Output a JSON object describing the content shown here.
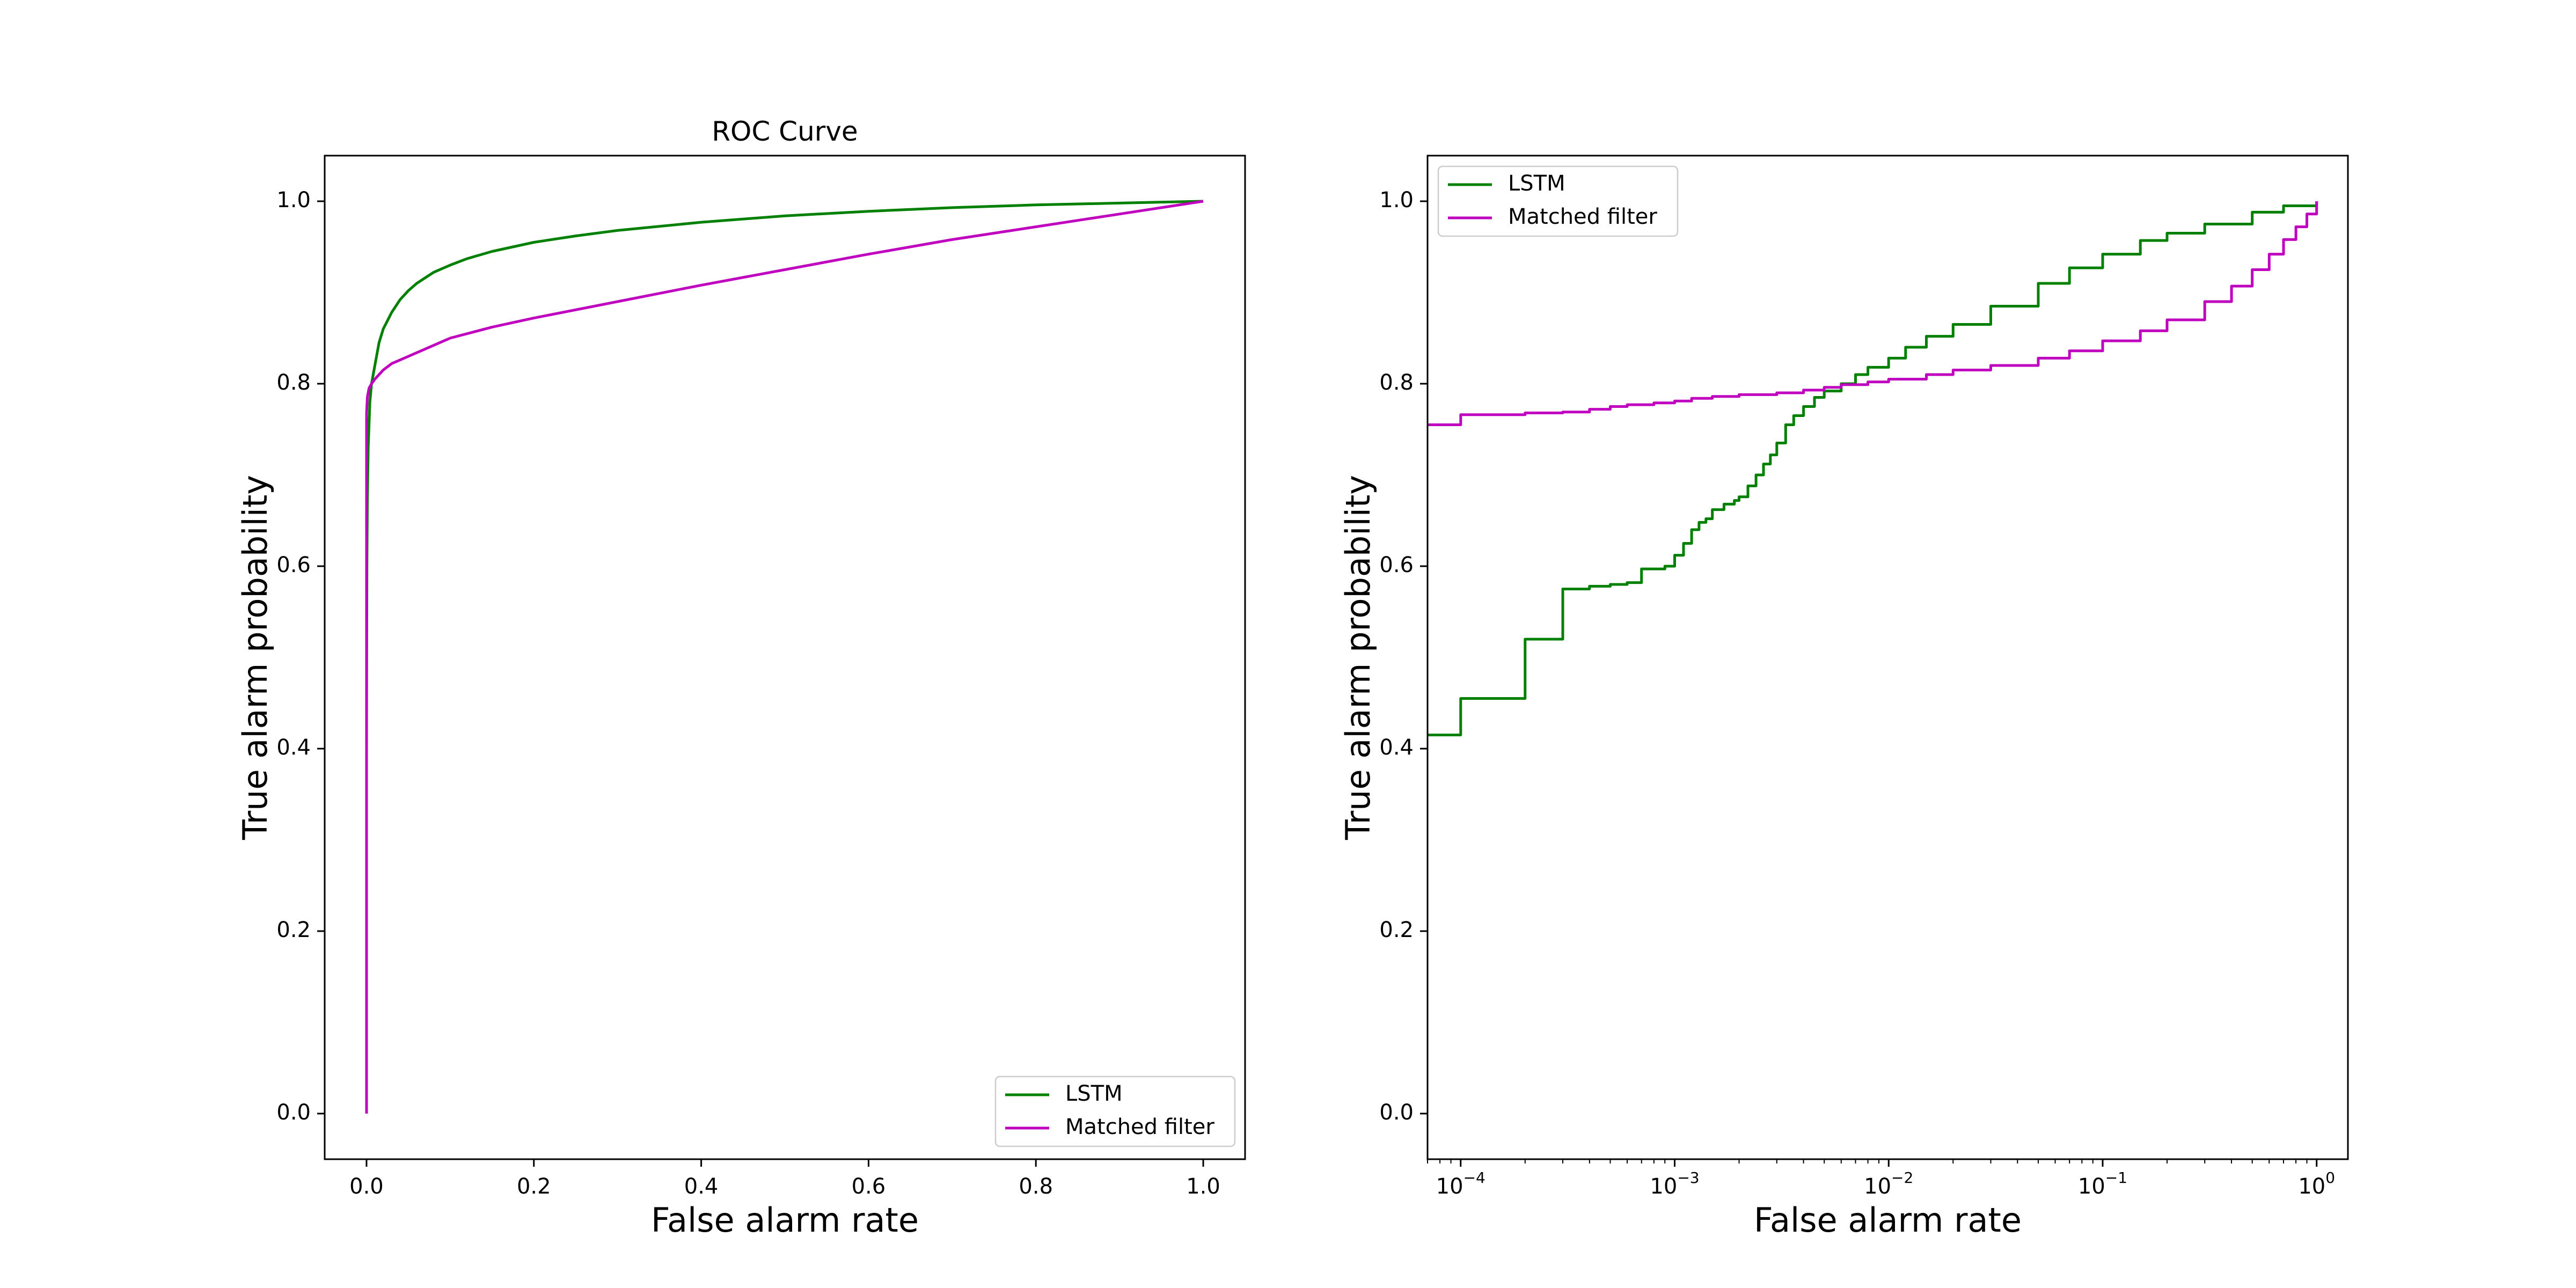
{
  "colors": {
    "lstm": "#008000",
    "matched_filter": "#bf00bf"
  },
  "chart_data": [
    {
      "type": "line",
      "title": "ROC Curve",
      "xlabel": "False alarm rate",
      "ylabel": "True alarm probability",
      "xscale": "linear",
      "xlim": [
        -0.05,
        1.05
      ],
      "ylim": [
        -0.05,
        1.05
      ],
      "xticks": [
        0.0,
        0.2,
        0.4,
        0.6,
        0.8,
        1.0
      ],
      "xtick_labels": [
        "0.0",
        "0.2",
        "0.4",
        "0.6",
        "0.8",
        "1.0"
      ],
      "yticks": [
        0.0,
        0.2,
        0.4,
        0.6,
        0.8,
        1.0
      ],
      "ytick_labels": [
        "0.0",
        "0.2",
        "0.4",
        "0.6",
        "0.8",
        "1.0"
      ],
      "grid": false,
      "legend": "lower-right",
      "series": [
        {
          "name": "LSTM",
          "color": "#008000",
          "x": [
            0.0,
            0.0001,
            0.0005,
            0.001,
            0.002,
            0.004,
            0.006,
            0.008,
            0.01,
            0.015,
            0.02,
            0.03,
            0.04,
            0.05,
            0.06,
            0.08,
            0.1,
            0.12,
            0.15,
            0.2,
            0.25,
            0.3,
            0.4,
            0.5,
            0.6,
            0.7,
            0.8,
            0.9,
            1.0
          ],
          "y": [
            0.4,
            0.45,
            0.6,
            0.67,
            0.73,
            0.78,
            0.8,
            0.81,
            0.82,
            0.845,
            0.86,
            0.878,
            0.892,
            0.902,
            0.91,
            0.922,
            0.93,
            0.937,
            0.945,
            0.955,
            0.962,
            0.968,
            0.977,
            0.984,
            0.989,
            0.993,
            0.996,
            0.998,
            1.0
          ]
        },
        {
          "name": "Matched filter",
          "color": "#bf00bf",
          "x": [
            0.0,
            0.0,
            0.0001,
            0.001,
            0.003,
            0.006,
            0.01,
            0.02,
            0.03,
            0.05,
            0.07,
            0.1,
            0.15,
            0.2,
            0.3,
            0.4,
            0.5,
            0.6,
            0.7,
            0.8,
            0.9,
            0.95,
            1.0
          ],
          "y": [
            0.0,
            0.755,
            0.768,
            0.785,
            0.795,
            0.8,
            0.805,
            0.815,
            0.822,
            0.83,
            0.838,
            0.85,
            0.862,
            0.872,
            0.89,
            0.908,
            0.925,
            0.942,
            0.958,
            0.972,
            0.986,
            0.993,
            1.0
          ]
        }
      ]
    },
    {
      "type": "line",
      "title": "",
      "xlabel": "False alarm rate",
      "ylabel": "True alarm probability",
      "xscale": "log",
      "xlim": [
        7e-05,
        1.4
      ],
      "ylim": [
        -0.05,
        1.05
      ],
      "xticks": [
        0.0001,
        0.001,
        0.01,
        0.1,
        1
      ],
      "xtick_exponents": [
        "−4",
        "−3",
        "−2",
        "−1",
        "0"
      ],
      "xtick_base": "10",
      "yticks": [
        0.0,
        0.2,
        0.4,
        0.6,
        0.8,
        1.0
      ],
      "ytick_labels": [
        "0.0",
        "0.2",
        "0.4",
        "0.6",
        "0.8",
        "1.0"
      ],
      "grid": false,
      "legend": "upper-left",
      "series": [
        {
          "name": "LSTM",
          "color": "#008000",
          "step": true,
          "x": [
            7e-05,
            0.0001,
            0.0002,
            0.0003,
            0.0004,
            0.0005,
            0.0006,
            0.0007,
            0.0009,
            0.001,
            0.0011,
            0.0012,
            0.0013,
            0.0014,
            0.0015,
            0.0017,
            0.0019,
            0.002,
            0.0022,
            0.0024,
            0.0026,
            0.0028,
            0.003,
            0.0033,
            0.0036,
            0.004,
            0.0045,
            0.005,
            0.006,
            0.007,
            0.008,
            0.01,
            0.012,
            0.015,
            0.02,
            0.03,
            0.05,
            0.07,
            0.1,
            0.15,
            0.2,
            0.3,
            0.5,
            0.7,
            1.0
          ],
          "y": [
            0.415,
            0.455,
            0.52,
            0.575,
            0.578,
            0.58,
            0.582,
            0.597,
            0.6,
            0.612,
            0.625,
            0.64,
            0.648,
            0.652,
            0.662,
            0.668,
            0.672,
            0.676,
            0.688,
            0.7,
            0.712,
            0.722,
            0.735,
            0.755,
            0.765,
            0.775,
            0.785,
            0.792,
            0.8,
            0.81,
            0.818,
            0.828,
            0.84,
            0.852,
            0.865,
            0.885,
            0.91,
            0.927,
            0.942,
            0.957,
            0.965,
            0.975,
            0.988,
            0.995,
            1.0
          ]
        },
        {
          "name": "Matched filter",
          "color": "#bf00bf",
          "step": true,
          "x": [
            7e-05,
            0.0001,
            0.0002,
            0.0003,
            0.0004,
            0.0005,
            0.0006,
            0.0008,
            0.001,
            0.0012,
            0.0015,
            0.002,
            0.003,
            0.004,
            0.005,
            0.006,
            0.008,
            0.01,
            0.015,
            0.02,
            0.03,
            0.05,
            0.07,
            0.1,
            0.15,
            0.2,
            0.3,
            0.4,
            0.5,
            0.6,
            0.7,
            0.8,
            0.9,
            1.0
          ],
          "y": [
            0.755,
            0.766,
            0.768,
            0.769,
            0.772,
            0.775,
            0.777,
            0.779,
            0.781,
            0.784,
            0.786,
            0.788,
            0.79,
            0.793,
            0.796,
            0.799,
            0.802,
            0.805,
            0.81,
            0.815,
            0.82,
            0.828,
            0.836,
            0.847,
            0.858,
            0.87,
            0.89,
            0.907,
            0.925,
            0.942,
            0.958,
            0.972,
            0.986,
            1.0
          ]
        }
      ]
    }
  ]
}
